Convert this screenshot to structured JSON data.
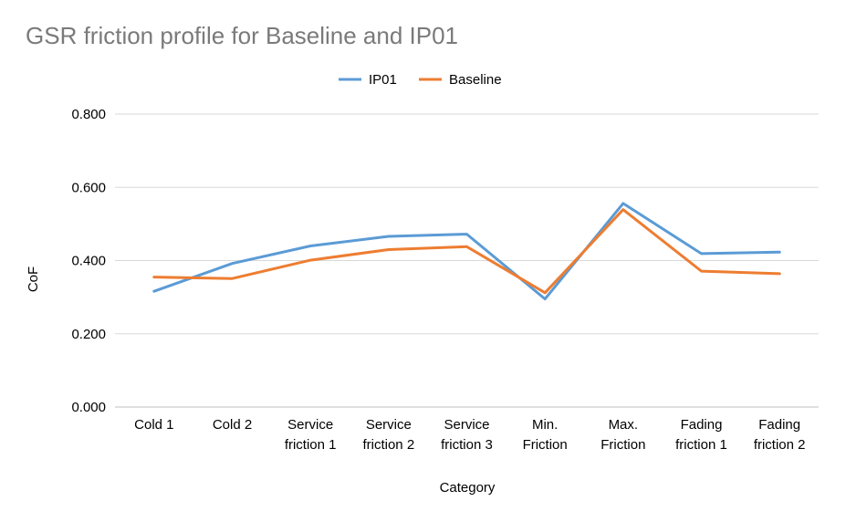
{
  "chart_data": {
    "type": "line",
    "title": "GSR friction profile for Baseline and IP01",
    "xlabel": "Category",
    "ylabel": "CoF",
    "categories": [
      [
        "Cold 1"
      ],
      [
        "Cold 2"
      ],
      [
        "Service",
        "friction 1"
      ],
      [
        "Service",
        "friction 2"
      ],
      [
        "Service",
        "friction 3"
      ],
      [
        "Min.",
        "Friction"
      ],
      [
        "Max.",
        "Friction"
      ],
      [
        "Fading",
        "friction 1"
      ],
      [
        "Fading",
        "friction 2"
      ]
    ],
    "ylim": [
      0,
      0.8
    ],
    "yticks": [
      "0.000",
      "0.200",
      "0.400",
      "0.600",
      "0.800"
    ],
    "grid": true,
    "legend_position": "top",
    "series": [
      {
        "name": "IP01",
        "color": "#5B9BD5",
        "values": [
          0.316,
          0.392,
          0.44,
          0.466,
          0.472,
          0.295,
          0.556,
          0.419,
          0.423
        ]
      },
      {
        "name": "Baseline",
        "color": "#ED7D31",
        "values": [
          0.355,
          0.351,
          0.401,
          0.43,
          0.438,
          0.312,
          0.539,
          0.371,
          0.364
        ]
      }
    ]
  }
}
